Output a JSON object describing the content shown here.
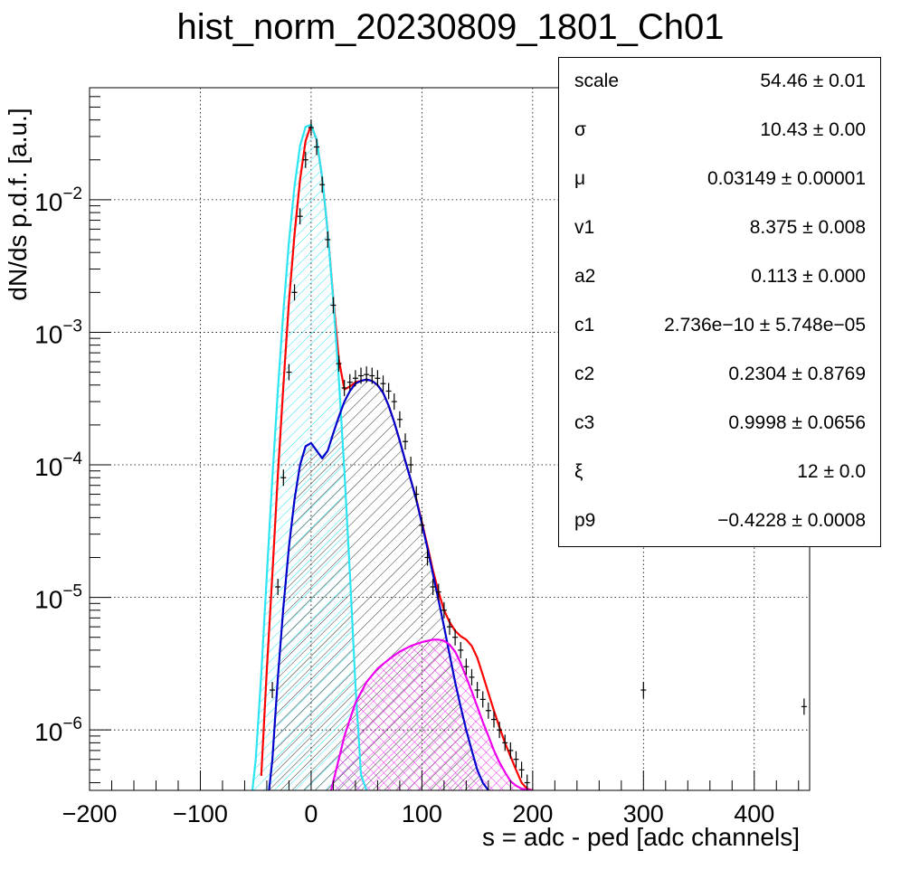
{
  "chart_data": {
    "type": "line",
    "title": "hist_norm_20230809_1801_Ch01",
    "xlabel": "s = adc - ped [adc channels]",
    "ylabel": "dN/ds p.d.f. [a.u.]",
    "xlim": [
      -200,
      450
    ],
    "ylim": [
      3.5e-07,
      0.07
    ],
    "yscale": "log",
    "grid": true,
    "x_ticks": [
      {
        "value": -200,
        "label": "−200"
      },
      {
        "value": -100,
        "label": "−100"
      },
      {
        "value": 0,
        "label": "0"
      },
      {
        "value": 100,
        "label": "100"
      },
      {
        "value": 200,
        "label": "200"
      },
      {
        "value": 300,
        "label": "300"
      },
      {
        "value": 400,
        "label": "400"
      }
    ],
    "y_ticks": [
      {
        "value": 1e-06,
        "base": "10",
        "exp": "−6"
      },
      {
        "value": 1e-05,
        "base": "10",
        "exp": "−5"
      },
      {
        "value": 0.0001,
        "base": "10",
        "exp": "−4"
      },
      {
        "value": 0.001,
        "base": "10",
        "exp": "−3"
      },
      {
        "value": 0.01,
        "base": "10",
        "exp": "−2"
      }
    ],
    "data_points": {
      "x": [
        -40,
        -35,
        -30,
        -25,
        -20,
        -15,
        -10,
        -5,
        0,
        5,
        10,
        15,
        20,
        25,
        30,
        35,
        40,
        45,
        50,
        55,
        60,
        65,
        70,
        75,
        80,
        85,
        90,
        95,
        100,
        105,
        110,
        115,
        120,
        125,
        130,
        135,
        140,
        145,
        150,
        155,
        160,
        165,
        170,
        175,
        180,
        185,
        190,
        195,
        300,
        445
      ],
      "y": [
        3e-07,
        2e-06,
        1.2e-05,
        8e-05,
        0.0005,
        0.002,
        0.0075,
        0.02,
        0.035,
        0.025,
        0.013,
        0.005,
        0.0016,
        0.00058,
        0.00038,
        0.00042,
        0.00045,
        0.00047,
        0.00048,
        0.00047,
        0.00045,
        0.00041,
        0.00036,
        0.0003,
        0.00022,
        0.00015,
        0.0001,
        6e-05,
        3.5e-05,
        2e-05,
        1.2e-05,
        1.1e-05,
        8e-06,
        6e-06,
        5e-06,
        4e-06,
        3e-06,
        2.5e-06,
        2e-06,
        1.7e-06,
        1.4e-06,
        1.2e-06,
        1e-06,
        8e-07,
        7e-07,
        6e-07,
        5e-07,
        4e-07,
        2e-06,
        1.5e-06
      ]
    },
    "series": [
      {
        "color": "#ff0000",
        "x": [
          -45,
          -40,
          -35,
          -30,
          -25,
          -20,
          -15,
          -10,
          -5,
          0,
          5,
          10,
          15,
          20,
          25,
          30,
          35,
          40,
          45,
          50,
          55,
          60,
          65,
          70,
          75,
          80,
          85,
          90,
          95,
          100,
          105,
          110,
          115,
          120,
          125,
          130,
          135,
          140,
          145,
          150,
          155,
          160,
          165,
          170,
          175,
          180,
          185,
          190,
          195,
          200
        ],
        "y": [
          4.5e-07,
          2.8e-06,
          1.5e-05,
          8.5e-05,
          0.0004,
          0.0017,
          0.0055,
          0.0142,
          0.0278,
          0.0367,
          0.0283,
          0.0146,
          0.0057,
          0.0018,
          0.00063,
          0.00037,
          0.00039,
          0.00042,
          0.00043,
          0.00044,
          0.00043,
          0.0004,
          0.00035,
          0.00028,
          0.00021,
          0.000152,
          0.000107,
          7.7e-05,
          5.5e-05,
          3.7e-05,
          2.45e-05,
          1.6e-05,
          1.1e-05,
          8e-06,
          6.5e-06,
          5.6e-06,
          5.1e-06,
          4.8e-06,
          4.3e-06,
          3.5e-06,
          2.6e-06,
          1.9e-06,
          1.4e-06,
          1.05e-06,
          8e-07,
          6.3e-07,
          5e-07,
          4e-07,
          3.6e-07,
          3.5e-07
        ]
      },
      {
        "color": "#2ce5f2",
        "fill": "hatch",
        "x": [
          -53,
          -50,
          -45,
          -40,
          -35,
          -30,
          -25,
          -20,
          -15,
          -10,
          -5,
          0,
          5,
          10,
          15,
          20,
          25,
          30,
          35,
          40,
          45,
          50
        ],
        "y": [
          3.5e-07,
          6e-07,
          2.6e-06,
          1.45e-05,
          8e-05,
          0.00037,
          0.00145,
          0.0048,
          0.0127,
          0.0255,
          0.0355,
          0.0367,
          0.0285,
          0.0147,
          0.0057,
          0.00175,
          0.00045,
          9e-05,
          1.5e-05,
          2.2e-06,
          4.6e-07,
          3.5e-07
        ]
      },
      {
        "color": "#0000cc",
        "fill": "hatch",
        "x": [
          -38,
          -35,
          -30,
          -25,
          -20,
          -15,
          -10,
          -5,
          0,
          5,
          10,
          15,
          20,
          25,
          30,
          35,
          40,
          45,
          50,
          55,
          60,
          65,
          70,
          75,
          80,
          85,
          90,
          95,
          100,
          105,
          110,
          115,
          120,
          125,
          130,
          135,
          140,
          145,
          150,
          155,
          160
        ],
        "y": [
          3.5e-07,
          6e-07,
          2.5e-06,
          8.5e-06,
          2.4e-05,
          5.5e-05,
          0.0001,
          0.000138,
          0.000146,
          0.000128,
          0.000112,
          0.000128,
          0.000173,
          0.00023,
          0.0003,
          0.00036,
          0.00041,
          0.00043,
          0.00044,
          0.00043,
          0.0004,
          0.00035,
          0.00028,
          0.00021,
          0.000152,
          0.000107,
          7.7e-05,
          5.4e-05,
          3.6e-05,
          2.35e-05,
          1.5e-05,
          9.5e-06,
          6e-06,
          3.7e-06,
          2.3e-06,
          1.5e-06,
          1e-06,
          7e-07,
          5e-07,
          4e-07,
          3.5e-07
        ]
      },
      {
        "color": "#ee00ee",
        "fill": "crosshatch",
        "x": [
          18,
          25,
          30,
          40,
          50,
          60,
          70,
          80,
          90,
          100,
          110,
          115,
          120,
          125,
          130,
          135,
          140,
          145,
          150,
          155,
          160,
          165,
          170,
          175,
          180,
          185,
          190,
          195,
          200
        ],
        "y": [
          3.5e-07,
          6e-07,
          9e-07,
          1.6e-06,
          2.3e-06,
          2.9e-06,
          3.4e-06,
          3.9e-06,
          4.3e-06,
          4.6e-06,
          4.8e-06,
          4.8e-06,
          4.7e-06,
          4.4e-06,
          3.9e-06,
          3.2e-06,
          2.5e-06,
          1.95e-06,
          1.5e-06,
          1.15e-06,
          9e-07,
          7e-07,
          5.7e-07,
          4.8e-07,
          4.1e-07,
          3.8e-07,
          3.6e-07,
          3.55e-07,
          3.5e-07
        ]
      }
    ]
  },
  "stats": [
    {
      "name": "scale",
      "value": "54.46 ± 0.01"
    },
    {
      "name": "σ",
      "value": "10.43 ± 0.00"
    },
    {
      "name": "μ",
      "value": "0.03149 ± 0.00001"
    },
    {
      "name": "v1",
      "value": "8.375 ± 0.008"
    },
    {
      "name": "a2",
      "value": "0.113 ± 0.000"
    },
    {
      "name": "c1",
      "value": "2.736e−10 ± 5.748e−05"
    },
    {
      "name": "c2",
      "value": "0.2304 ± 0.8769"
    },
    {
      "name": "c3",
      "value": "0.9998 ± 0.0656"
    },
    {
      "name": "ξ",
      "value": "12 ± 0.0"
    },
    {
      "name": "p9",
      "value": "−0.4228 ± 0.0008"
    }
  ]
}
